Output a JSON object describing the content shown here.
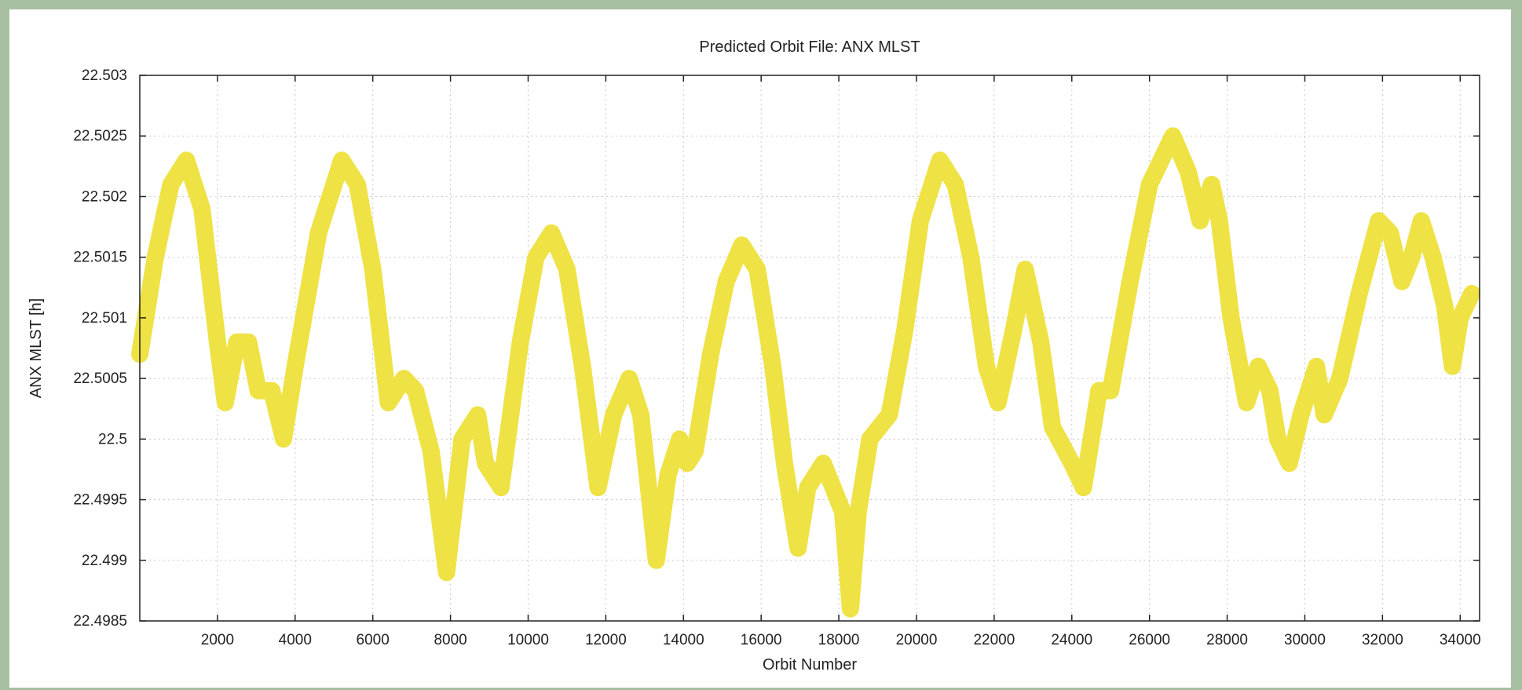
{
  "chart_data": {
    "type": "line",
    "title": "Predicted Orbit File: ANX MLST",
    "xlabel": "Orbit Number",
    "ylabel": "ANX MLST [h]",
    "xlim": [
      0,
      34500
    ],
    "ylim": [
      22.4985,
      22.503
    ],
    "xticks": [
      2000,
      4000,
      6000,
      8000,
      10000,
      12000,
      14000,
      16000,
      18000,
      20000,
      22000,
      24000,
      26000,
      28000,
      30000,
      32000,
      34000
    ],
    "yticks": [
      22.4985,
      22.499,
      22.4995,
      22.5,
      22.5005,
      22.501,
      22.5015,
      22.502,
      22.5025,
      22.503
    ],
    "ytick_labels": [
      "22.4985",
      "22.499",
      "22.4995",
      "22.5",
      "22.5005",
      "22.501",
      "22.5015",
      "22.502",
      "22.5025",
      "22.503"
    ],
    "grid": true,
    "legend": "none",
    "series": [
      {
        "color": "#eee244",
        "x": [
          0,
          400,
          800,
          1200,
          1600,
          2000,
          2200,
          2500,
          2800,
          3050,
          3400,
          3700,
          4000,
          4600,
          5200,
          5600,
          6000,
          6400,
          6800,
          7100,
          7500,
          7900,
          8300,
          8700,
          8900,
          9300,
          9800,
          10200,
          10600,
          11000,
          11400,
          11800,
          12200,
          12600,
          12900,
          13300,
          13600,
          13900,
          14100,
          14300,
          14700,
          15100,
          15500,
          15900,
          16300,
          16600,
          16950,
          17200,
          17600,
          17850,
          18100,
          18300,
          18500,
          18800,
          19300,
          19700,
          20100,
          20600,
          21000,
          21400,
          21800,
          22100,
          22500,
          22800,
          23200,
          23500,
          24000,
          24300,
          24700,
          25000,
          25500,
          26000,
          26600,
          27000,
          27300,
          27600,
          27800,
          28100,
          28500,
          28800,
          29100,
          29300,
          29600,
          29900,
          30300,
          30500,
          30900,
          31400,
          31900,
          32200,
          32500,
          32750,
          33000,
          33300,
          33600,
          33800,
          34000,
          34300
        ],
        "y": [
          22.5007,
          22.5015,
          22.5021,
          22.5023,
          22.5019,
          22.5008,
          22.5003,
          22.5008,
          22.5008,
          22.5004,
          22.5004,
          22.5,
          22.5006,
          22.5017,
          22.5023,
          22.5021,
          22.5014,
          22.5003,
          22.5005,
          22.5004,
          22.4999,
          22.4989,
          22.5,
          22.5002,
          22.4998,
          22.4996,
          22.5008,
          22.5015,
          22.5017,
          22.5014,
          22.5006,
          22.4996,
          22.5002,
          22.5005,
          22.5002,
          22.499,
          22.4997,
          22.5,
          22.4998,
          22.4999,
          22.5007,
          22.5013,
          22.5016,
          22.5014,
          22.5006,
          22.4998,
          22.4991,
          22.4996,
          22.4998,
          22.4996,
          22.4994,
          22.4986,
          22.4994,
          22.5,
          22.5002,
          22.5009,
          22.5018,
          22.5023,
          22.5021,
          22.5015,
          22.5006,
          22.5003,
          22.5009,
          22.5014,
          22.5008,
          22.5001,
          22.4998,
          22.4996,
          22.5004,
          22.5004,
          22.5013,
          22.5021,
          22.5025,
          22.5022,
          22.5018,
          22.5021,
          22.5018,
          22.501,
          22.5003,
          22.5006,
          22.5004,
          22.5,
          22.4998,
          22.5002,
          22.5006,
          22.5002,
          22.5005,
          22.5012,
          22.5018,
          22.5017,
          22.5013,
          22.5015,
          22.5018,
          22.5015,
          22.5011,
          22.5006,
          22.501,
          22.5012
        ]
      }
    ]
  }
}
